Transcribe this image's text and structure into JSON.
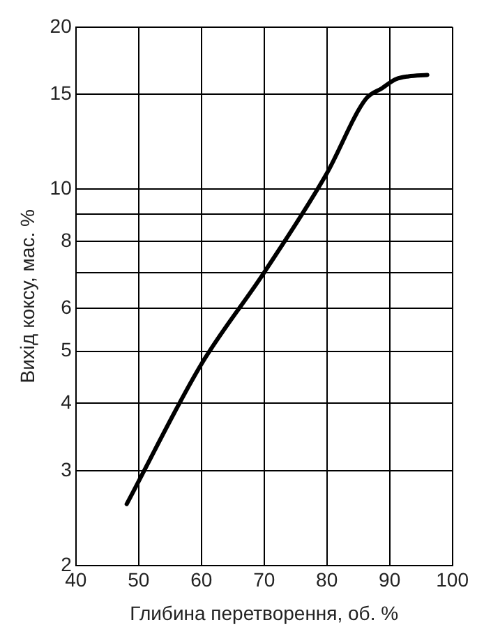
{
  "chart_data": {
    "type": "line",
    "xlabel": "Глибина перетворення, об. %",
    "ylabel": "Вихід коксу, мас. %",
    "series": [
      {
        "color": "#000000",
        "x": [
          48.1,
          60,
          70,
          80,
          86.2,
          88.8,
          91,
          93,
          96
        ],
        "values": [
          2.6,
          4.73,
          7,
          10.7,
          14.7,
          15.4,
          16,
          16.2,
          16.3
        ]
      }
    ],
    "xlim": [
      40,
      100
    ],
    "xticks": [
      40,
      50,
      60,
      70,
      80,
      90,
      100
    ],
    "ylim": [
      2,
      20
    ],
    "yticks": [
      2,
      3,
      4,
      5,
      6,
      {
        "value": 7,
        "label": null
      },
      8,
      {
        "value": 9,
        "label": null
      },
      10,
      15,
      20
    ],
    "log": "y",
    "grid": true,
    "legend": false,
    "marker": "none",
    "line_style": "solid"
  }
}
